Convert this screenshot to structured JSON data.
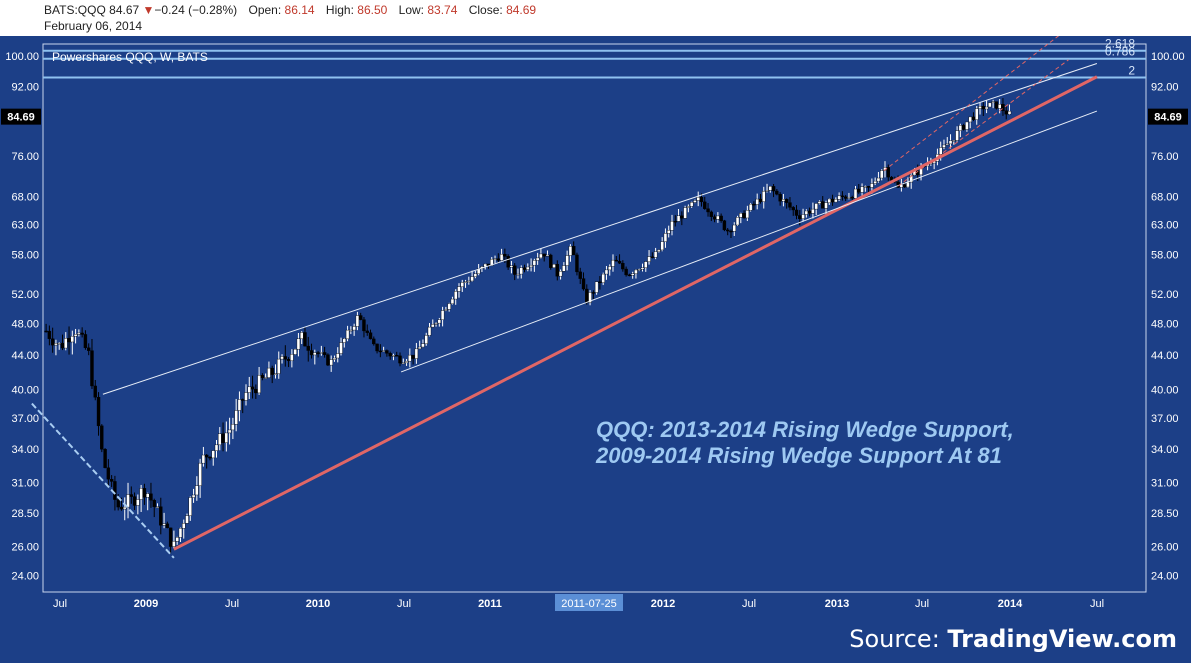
{
  "header": {
    "ticker": "BATS:QQQ",
    "price": "84.67",
    "change": "−0.24 (−0.28%)",
    "open_label": "Open:",
    "open": "86.14",
    "high_label": "High:",
    "high": "86.50",
    "low_label": "Low:",
    "low": "83.74",
    "close_label": "Close:",
    "close": "84.69",
    "date": "February 06, 2014"
  },
  "colors": {
    "background": "#1c3f87",
    "candle_up": "#ffffff",
    "candle_down": "#000000",
    "support_line": "#e06666",
    "channel_lines": "#e8eef8",
    "fib_lines": "#8fc2f0",
    "annotation": "#9ec9f2"
  },
  "source": {
    "prefix": "Source: ",
    "brand": "TradingView.com"
  },
  "chart_data": {
    "type": "candlestick",
    "subtype": "weekly OHLC",
    "title": "Powershares QQQ, W, BATS",
    "x_ticks": [
      "Jul",
      "2009",
      "Jul",
      "2010",
      "Jul",
      "2011",
      "2011-07-25",
      "2012",
      "Jul",
      "2013",
      "Jul",
      "2014",
      "Jul"
    ],
    "x_highlight": "2011-07-25",
    "y_ticks": [
      "100.00",
      "92.00",
      "76.00",
      "68.00",
      "63.00",
      "58.00",
      "52.00",
      "48.00",
      "44.00",
      "40.00",
      "37.00",
      "34.00",
      "31.00",
      "28.50",
      "26.00",
      "24.00"
    ],
    "y_scale": "log",
    "ylim": [
      23.5,
      103
    ],
    "last_price_label": "84.69",
    "price_path": [
      [
        "2008-06",
        47
      ],
      [
        "2008-07",
        45
      ],
      [
        "2008-08",
        47.5
      ],
      [
        "2008-09",
        44
      ],
      [
        "2008-10",
        33
      ],
      [
        "2008-11",
        29
      ],
      [
        "2008-12",
        29.5
      ],
      [
        "2009-01",
        30.5
      ],
      [
        "2009-03",
        26
      ],
      [
        "2009-04",
        29
      ],
      [
        "2009-05",
        33
      ],
      [
        "2009-07",
        36
      ],
      [
        "2009-08",
        39.5
      ],
      [
        "2009-10",
        42
      ],
      [
        "2009-12",
        46
      ],
      [
        "2010-02",
        43
      ],
      [
        "2010-04",
        49
      ],
      [
        "2010-05",
        45
      ],
      [
        "2010-07",
        43.5
      ],
      [
        "2010-08",
        44
      ],
      [
        "2010-09",
        47
      ],
      [
        "2010-11",
        53
      ],
      [
        "2011-02",
        58
      ],
      [
        "2011-03",
        55
      ],
      [
        "2011-05",
        58.5
      ],
      [
        "2011-06",
        55
      ],
      [
        "2011-07",
        59
      ],
      [
        "2011-08",
        51
      ],
      [
        "2011-10",
        57
      ],
      [
        "2011-11",
        55
      ],
      [
        "2012-01",
        58
      ],
      [
        "2012-02",
        63
      ],
      [
        "2012-04",
        67.5
      ],
      [
        "2012-06",
        62
      ],
      [
        "2012-09",
        69.5
      ],
      [
        "2012-11",
        64.5
      ],
      [
        "2013-01",
        67
      ],
      [
        "2013-04",
        69.5
      ],
      [
        "2013-05",
        74
      ],
      [
        "2013-06",
        69.5
      ],
      [
        "2013-09",
        77
      ],
      [
        "2013-11",
        84
      ],
      [
        "2013-12",
        87
      ],
      [
        "2014-01",
        87.5
      ],
      [
        "2014-02",
        84.69
      ]
    ],
    "lines": [
      {
        "name": "2009-2014 rising wedge support",
        "from": [
          "2009-03",
          25.8
        ],
        "to": [
          "2014-08",
          94.5
        ]
      },
      {
        "name": "channel upper",
        "from": [
          "2008-10",
          39.5
        ],
        "to": [
          "2014-08",
          98
        ]
      },
      {
        "name": "channel lower",
        "from": [
          "2010-07",
          42
        ],
        "to": [
          "2014-08",
          86
        ]
      },
      {
        "name": "2013-2014 wedge support (dashed)",
        "from": [
          "2013-06",
          70
        ],
        "to": [
          "2014-06",
          99
        ]
      },
      {
        "name": "2013-2014 wedge upper (dashed)",
        "from": [
          "2013-05",
          73
        ],
        "to": [
          "2014-06",
          108
        ]
      },
      {
        "name": "2008 downtrend (dashed)",
        "from": [
          "2008-05",
          38.5
        ],
        "to": [
          "2009-03",
          25.2
        ]
      }
    ],
    "fib_levels": [
      {
        "label": "2.618",
        "value": 101.5
      },
      {
        "label": "0.786",
        "value": 99.3
      },
      {
        "label": "2",
        "value": 94.3
      }
    ],
    "annotation": [
      "QQQ: 2013-2014 Rising Wedge Support,",
      "2009-2014 Rising Wedge Support At 81"
    ]
  }
}
